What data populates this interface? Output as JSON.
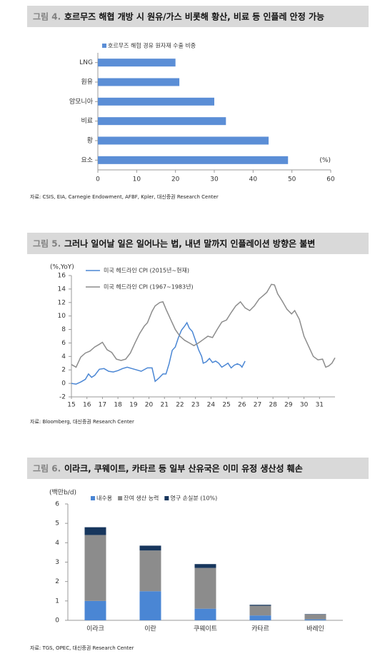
{
  "chart_data": [
    {
      "type": "bar",
      "orientation": "horizontal",
      "figure_label": "그림 4.",
      "title": "호르무즈 해협 개방 시 원유/가스 비롯해 황산, 비료 등 인플레 안정 가능",
      "categories": [
        "LNG",
        "원유",
        "암모니아",
        "비료",
        "황",
        "요소"
      ],
      "series": [
        {
          "name": "호르무즈 해협 경유 원자재 수출 비중",
          "color": "#5b8ed6",
          "values": [
            20,
            21,
            30,
            33,
            44,
            49
          ]
        }
      ],
      "xlim": [
        0,
        60
      ],
      "xticks": [
        0,
        10,
        20,
        30,
        40,
        50,
        60
      ],
      "x_unit": "(%)",
      "source": "자료: CSIS, EIA, Carnegie Endowment, AFBF, Kpler, 대신증권 Research Center"
    },
    {
      "type": "line",
      "figure_label": "그림 5.",
      "title": "그러나 일어날 일은 일어나는 법, 내년 말까지 인플레이션 방향은 불변",
      "y_label": "(%,YoY)",
      "series": [
        {
          "name": "미국 헤드라인 CPI (2015년~현재)",
          "color": "#4a86d4",
          "x": [
            15.0,
            15.3,
            15.6,
            15.9,
            16.1,
            16.3,
            16.5,
            16.8,
            17.1,
            17.4,
            17.7,
            18.0,
            18.3,
            18.6,
            18.9,
            19.2,
            19.5,
            19.9,
            20.2,
            20.4,
            20.6,
            20.9,
            21.1,
            21.3,
            21.5,
            21.7,
            21.9,
            22.1,
            22.3,
            22.45,
            22.6,
            22.8,
            23.0,
            23.2,
            23.4,
            23.5,
            23.7,
            23.9,
            24.1,
            24.3,
            24.5,
            24.7,
            24.9,
            25.1,
            25.3,
            25.5,
            25.7,
            25.9,
            26.0,
            26.2
          ],
          "values": [
            0,
            -0.1,
            0.2,
            0.6,
            1.4,
            0.9,
            1.2,
            2.1,
            2.2,
            1.8,
            1.7,
            1.9,
            2.2,
            2.4,
            2.2,
            2.0,
            1.8,
            2.3,
            2.3,
            0.3,
            0.7,
            1.4,
            1.4,
            2.9,
            4.9,
            5.4,
            6.8,
            7.9,
            8.5,
            9.0,
            8.2,
            7.7,
            6.4,
            5.0,
            4.0,
            3.0,
            3.2,
            3.7,
            3.1,
            3.3,
            3.0,
            2.4,
            2.7,
            3.0,
            2.3,
            2.7,
            2.9,
            2.7,
            2.4,
            3.3
          ]
        },
        {
          "name": "미국 헤드라인 CPI (1967~1983년)",
          "color": "#8c8c8c",
          "x": [
            15.0,
            15.3,
            15.6,
            15.9,
            16.2,
            16.5,
            16.8,
            17.0,
            17.3,
            17.6,
            17.9,
            18.2,
            18.5,
            18.8,
            19.1,
            19.4,
            19.7,
            19.9,
            20.2,
            20.4,
            20.7,
            20.9,
            21.1,
            21.4,
            21.7,
            22.0,
            22.3,
            22.6,
            22.9,
            23.2,
            23.5,
            23.8,
            24.1,
            24.4,
            24.7,
            25.0,
            25.3,
            25.6,
            25.9,
            26.2,
            26.5,
            26.8,
            27.1,
            27.4,
            27.6,
            27.9,
            28.1,
            28.3,
            28.6,
            28.9,
            29.2,
            29.4,
            29.7,
            30.0,
            30.3,
            30.6,
            30.9,
            31.2,
            31.4,
            31.6,
            31.8,
            32.0
          ],
          "values": [
            2.8,
            2.4,
            3.9,
            4.5,
            4.8,
            5.4,
            5.8,
            6.1,
            5.0,
            4.6,
            3.6,
            3.4,
            3.6,
            4.5,
            6.0,
            7.4,
            8.5,
            9.0,
            10.7,
            11.5,
            12.0,
            12.1,
            11.0,
            9.5,
            8.0,
            7.0,
            6.4,
            6.0,
            5.6,
            6.0,
            6.5,
            7.0,
            6.8,
            8.0,
            9.1,
            9.4,
            10.5,
            11.5,
            12.1,
            11.2,
            10.8,
            11.5,
            12.5,
            13.1,
            13.5,
            14.7,
            14.6,
            13.3,
            12.2,
            11.0,
            10.3,
            10.8,
            9.5,
            7.0,
            5.5,
            4.0,
            3.5,
            3.6,
            2.4,
            2.6,
            3.0,
            3.8
          ]
        }
      ],
      "xlim": [
        15,
        32
      ],
      "xticks": [
        15,
        16,
        17,
        18,
        19,
        20,
        21,
        22,
        23,
        24,
        25,
        26,
        27,
        28,
        29,
        30,
        31
      ],
      "ylim": [
        -2,
        16
      ],
      "yticks": [
        -2,
        0,
        2,
        4,
        6,
        8,
        10,
        12,
        14,
        16
      ],
      "source": "자료: Bloomberg, 대신증권 Research Center"
    },
    {
      "type": "stacked_bar",
      "figure_label": "그림 6.",
      "title": "이라크, 쿠웨이트, 카타르 등 일부 산유국은 이미 유정 생산성 훼손",
      "y_label": "(백만b/d)",
      "categories": [
        "이라크",
        "이란",
        "쿠웨이트",
        "카타르",
        "바레인"
      ],
      "series": [
        {
          "name": "내수용",
          "color": "#4a86d4",
          "values": [
            1.0,
            1.5,
            0.6,
            0.25,
            0.05
          ]
        },
        {
          "name": "잔여 생산 능력",
          "color": "#8c8c8c",
          "values": [
            3.4,
            2.1,
            2.1,
            0.5,
            0.25
          ]
        },
        {
          "name": "영구 손실분 (10%)",
          "color": "#17365d",
          "values": [
            0.4,
            0.25,
            0.2,
            0.05,
            0.02
          ]
        }
      ],
      "ylim": [
        0,
        6
      ],
      "yticks": [
        0,
        1,
        2,
        3,
        4,
        5,
        6
      ],
      "source": "자료: TGS, OPEC, 대신증권 Research Center"
    }
  ]
}
